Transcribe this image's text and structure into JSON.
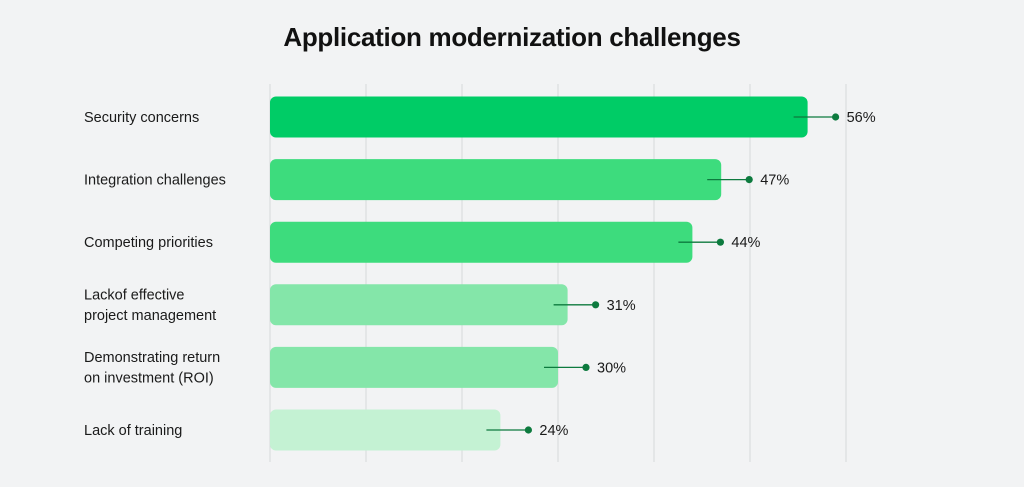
{
  "chart_data": {
    "type": "bar",
    "orientation": "horizontal",
    "title": "Application modernization challenges",
    "categories": [
      [
        "Security concerns"
      ],
      [
        "Integration challenges"
      ],
      [
        "Competing priorities"
      ],
      [
        "Lackof effective",
        "project management"
      ],
      [
        "Demonstrating return",
        "on investment (ROI)"
      ],
      [
        "Lack of training"
      ]
    ],
    "values": [
      56,
      47,
      44,
      31,
      30,
      24
    ],
    "value_labels": [
      "56%",
      "47%",
      "44%",
      "31%",
      "30%",
      "24%"
    ],
    "bar_colors": [
      "#00cc66",
      "#3ddc7d",
      "#3ddc7d",
      "#84e6a9",
      "#84e6a9",
      "#c4f2d3"
    ],
    "marker_color": "#0d7a3e",
    "grid_color": "#d6d8da",
    "xlim": [
      0,
      60
    ],
    "grid": true,
    "legend": "none",
    "xlabel": "",
    "ylabel": ""
  }
}
